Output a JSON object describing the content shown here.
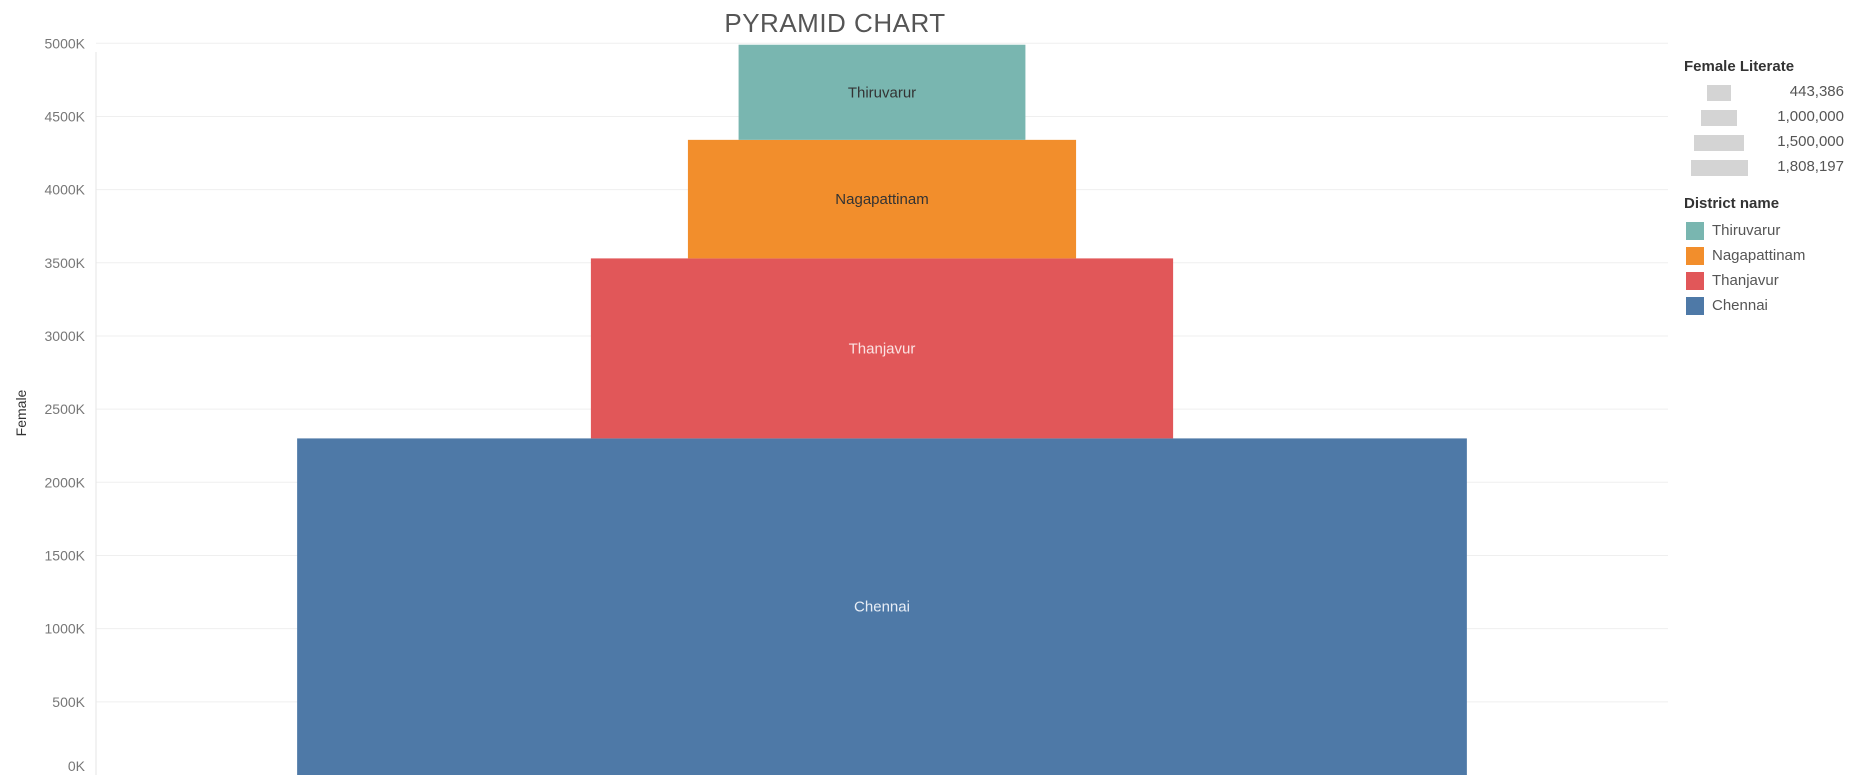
{
  "page": {
    "title": "PYRAMID CHART"
  },
  "legend": {
    "size_title": "Female Literate",
    "size_items": [
      {
        "label": "443,386",
        "value": 443386
      },
      {
        "label": "1,000,000",
        "value": 1000000
      },
      {
        "label": "1,500,000",
        "value": 1500000
      },
      {
        "label": "1,808,197",
        "value": 1808197
      }
    ],
    "color_title": "District name",
    "color_items": [
      {
        "label": "Thiruvarur",
        "color": "#79b6b0"
      },
      {
        "label": "Nagapattinam",
        "color": "#f28e2c"
      },
      {
        "label": "Thanjavur",
        "color": "#e15759"
      },
      {
        "label": "Chennai",
        "color": "#4e79a7"
      }
    ]
  },
  "chart_data": {
    "type": "bar",
    "title": "PYRAMID CHART",
    "ylabel": "Female",
    "ylim": [
      0,
      5200000
    ],
    "xlim": [
      0,
      2430000
    ],
    "y_ticks": [
      {
        "value": 0,
        "label": "0K"
      },
      {
        "value": 500000,
        "label": "500K"
      },
      {
        "value": 1000000,
        "label": "1000K"
      },
      {
        "value": 1500000,
        "label": "1500K"
      },
      {
        "value": 2000000,
        "label": "2000K"
      },
      {
        "value": 2500000,
        "label": "2500K"
      },
      {
        "value": 3000000,
        "label": "3000K"
      },
      {
        "value": 3500000,
        "label": "3500K"
      },
      {
        "value": 4000000,
        "label": "4000K"
      },
      {
        "value": 4500000,
        "label": "4500K"
      },
      {
        "value": 5000000,
        "label": "5000K"
      }
    ],
    "grid": true,
    "legend_position": "right",
    "bars": [
      {
        "label": "Chennai",
        "female": 2300000,
        "female_literate": 1808197,
        "color": "#4e79a7",
        "text_color": "#e8eef6"
      },
      {
        "label": "Thanjavur",
        "female": 1230000,
        "female_literate": 900000,
        "color": "#e15759",
        "text_color": "#fbe3e3"
      },
      {
        "label": "Nagapattinam",
        "female": 810000,
        "female_literate": 600000,
        "color": "#f28e2c",
        "text_color": "#333333"
      },
      {
        "label": "Thiruvarur",
        "female": 650000,
        "female_literate": 443386,
        "color": "#79b6b0",
        "text_color": "#333333"
      }
    ]
  }
}
